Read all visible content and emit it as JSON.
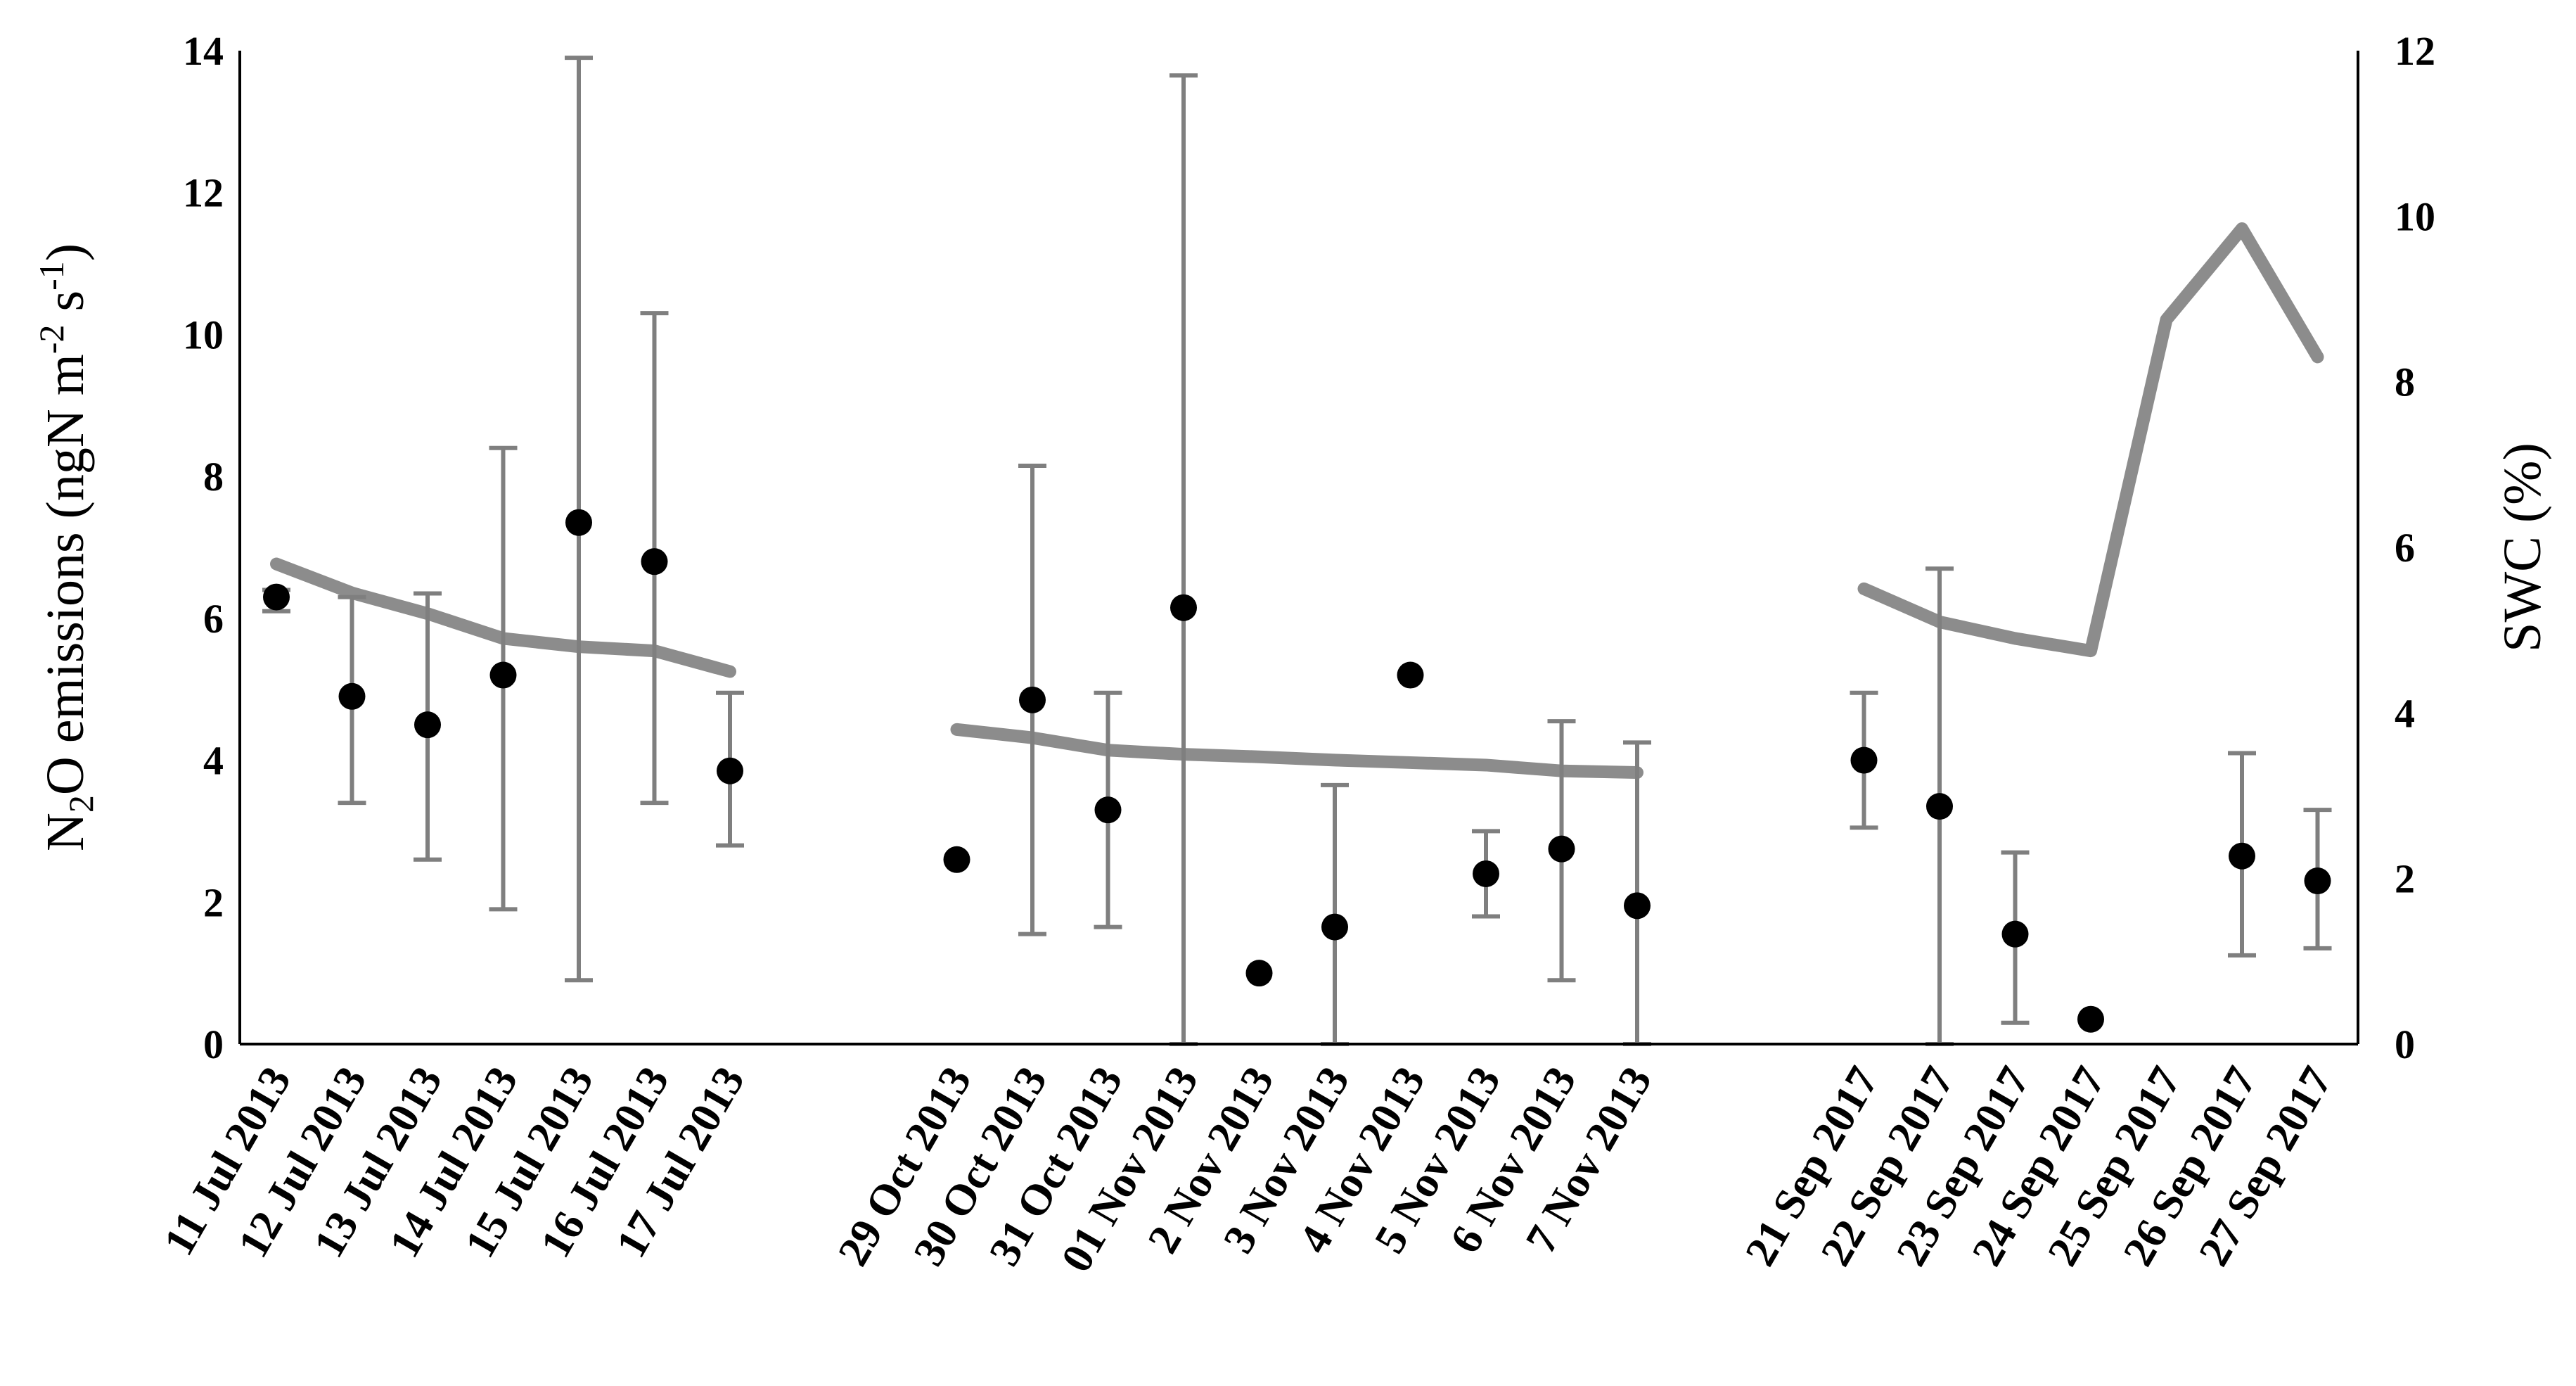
{
  "chart_data": {
    "type": "scatter",
    "title": "",
    "xlabel": "",
    "ylabel": {
      "main": "N",
      "sub": "2",
      "rest": "O emissions (ngN m",
      "sup1": "-2",
      "mid": " s",
      "sup2": "-1",
      "end": ")"
    },
    "y2label": "SWC (%)",
    "ylim": [
      0,
      14
    ],
    "y2lim": [
      0,
      12
    ],
    "yticks": [
      "0",
      "2",
      "4",
      "6",
      "8",
      "10",
      "12",
      "14"
    ],
    "y2ticks": [
      "0",
      "2",
      "4",
      "6",
      "8",
      "10",
      "12"
    ],
    "groups": [
      {
        "categories": [
          "11 Jul 2013",
          "12 Jul 2013",
          "13 Jul 2013",
          "14 Jul 2013",
          "15 Jul 2013",
          "16 Jul 2013",
          "17 Jul 2013"
        ],
        "n2o": [
          6.3,
          4.9,
          4.5,
          5.2,
          7.35,
          6.8,
          3.85
        ],
        "err_low": [
          6.1,
          3.4,
          2.6,
          1.9,
          0.9,
          3.4,
          2.8
        ],
        "err_high": [
          6.4,
          6.3,
          6.35,
          8.4,
          13.9,
          10.3,
          4.95
        ],
        "swc": [
          5.8,
          5.45,
          5.2,
          4.9,
          4.8,
          4.75,
          4.5
        ]
      },
      {
        "categories": [
          "29 Oct 2013",
          "30 Oct 2013",
          "31 Oct 2013",
          "01 Nov 2013",
          "2 Nov 2013",
          "3 Nov 2013",
          "4 Nov 2013",
          "5 Nov 2013",
          "6 Nov 2013",
          "7 Nov 2013"
        ],
        "n2o": [
          2.6,
          4.85,
          3.3,
          6.15,
          1.0,
          1.65,
          5.2,
          2.4,
          2.75,
          1.95
        ],
        "err_low": [
          null,
          1.55,
          1.65,
          0,
          null,
          0,
          null,
          1.8,
          0.9,
          0
        ],
        "err_high": [
          null,
          8.15,
          4.95,
          13.65,
          null,
          3.65,
          null,
          3.0,
          4.55,
          4.25
        ],
        "swc": [
          3.8,
          3.7,
          3.55,
          3.5,
          3.47,
          3.43,
          3.4,
          3.37,
          3.3,
          3.28
        ]
      },
      {
        "categories": [
          "21 Sep 2017",
          "22 Sep 2017",
          "23 Sep 2017",
          "24 Sep 2017",
          "25 Sep 2017",
          "26 Sep 2017",
          "27 Sep 2017"
        ],
        "n2o": [
          4.0,
          3.35,
          1.55,
          0.35,
          null,
          2.65,
          2.3
        ],
        "err_low": [
          3.05,
          0,
          0.3,
          null,
          null,
          1.25,
          1.35
        ],
        "err_high": [
          4.95,
          6.7,
          2.7,
          null,
          null,
          4.1,
          3.3
        ],
        "swc": [
          5.5,
          5.1,
          4.9,
          4.75,
          8.75,
          9.85,
          8.3
        ]
      }
    ]
  }
}
